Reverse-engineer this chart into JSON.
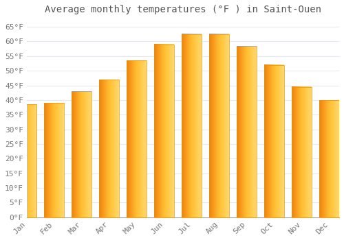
{
  "title": "Average monthly temperatures (°F ) in Saint-Ouen",
  "months": [
    "Jan",
    "Feb",
    "Mar",
    "Apr",
    "May",
    "Jun",
    "Jul",
    "Aug",
    "Sep",
    "Oct",
    "Nov",
    "Dec"
  ],
  "values": [
    38.5,
    39.0,
    43.0,
    47.0,
    53.5,
    59.0,
    62.5,
    62.5,
    58.5,
    52.0,
    44.5,
    40.0
  ],
  "bar_color_left": "#F5A623",
  "bar_color_right": "#FFD966",
  "bar_edge_color": "#E8930A",
  "ylim": [
    0,
    68
  ],
  "yticks": [
    0,
    5,
    10,
    15,
    20,
    25,
    30,
    35,
    40,
    45,
    50,
    55,
    60,
    65
  ],
  "ytick_labels": [
    "0°F",
    "5°F",
    "10°F",
    "15°F",
    "20°F",
    "25°F",
    "30°F",
    "35°F",
    "40°F",
    "45°F",
    "50°F",
    "55°F",
    "60°F",
    "65°F"
  ],
  "bg_color": "#ffffff",
  "grid_color": "#e8e8f0",
  "title_fontsize": 10,
  "tick_fontsize": 8,
  "font_family": "monospace"
}
